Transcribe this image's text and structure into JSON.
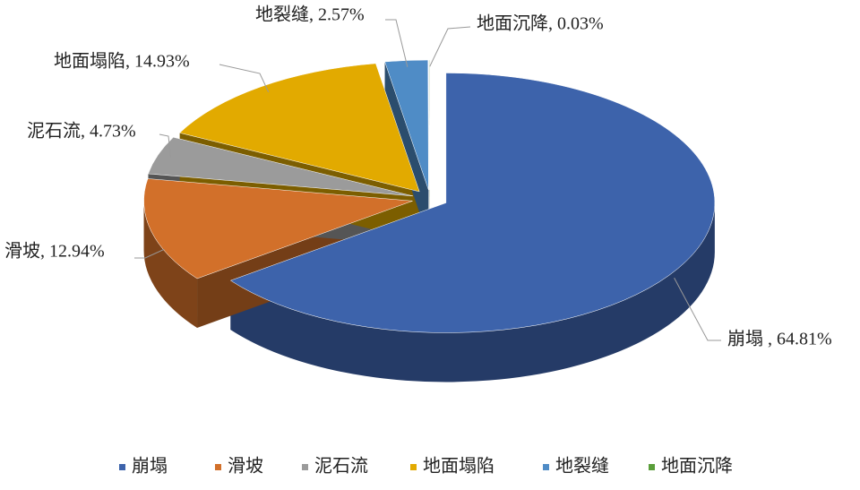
{
  "chart_data": {
    "type": "pie",
    "categories": [
      "崩塌",
      "滑坡",
      "泥石流",
      "地面塌陷",
      "地裂缝",
      "地面沉降"
    ],
    "values": [
      64.81,
      12.94,
      4.73,
      14.93,
      2.57,
      0.03
    ],
    "value_labels": [
      "崩塌 , 64.81%",
      "滑坡, 12.94%",
      "泥石流, 4.73%",
      "地面塌陷, 14.93%",
      "地裂缝, 2.57%",
      "地面沉降, 0.03%"
    ],
    "colors": [
      "#3d63ab",
      "#d2702a",
      "#9b9b9b",
      "#e2aa00",
      "#4f8cc6",
      "#5a9e3a"
    ],
    "legend": "bottom"
  }
}
